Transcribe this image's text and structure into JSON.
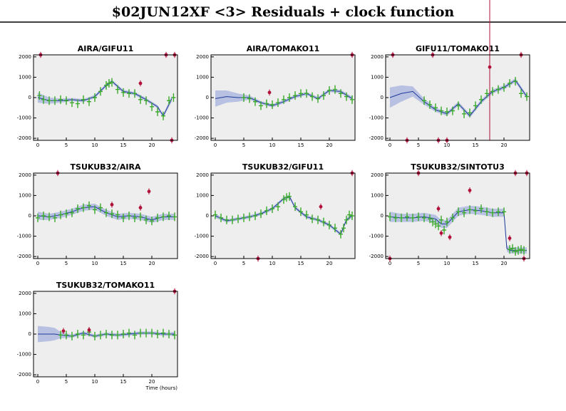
{
  "title": "$02JUN12XF <3> Residuals + clock function",
  "chart_data": [
    {
      "type": "scatter",
      "title": "AIRA/GIFU11",
      "xlim": [
        -0.75,
        24.5
      ],
      "ylim": [
        -2100,
        2100
      ],
      "xticks": [
        0,
        5,
        10,
        15,
        20
      ],
      "yticks": [
        -2000,
        -1000,
        0,
        1000,
        2000
      ],
      "series": [
        {
          "type": "line",
          "color": "#1f3a9a",
          "band_color": "#b9c1e2",
          "x": [
            0,
            2,
            4,
            6,
            8,
            10,
            12,
            13,
            15,
            17,
            19,
            21,
            22,
            23.5
          ],
          "values": [
            0,
            -150,
            -150,
            -100,
            -150,
            50,
            600,
            800,
            300,
            200,
            -100,
            -450,
            -900,
            -50
          ],
          "errors": [
            250,
            150,
            100,
            80,
            80,
            80,
            80,
            80,
            80,
            80,
            80,
            80,
            80,
            150
          ]
        },
        {
          "type": "scatter",
          "color": "#3aaa2a",
          "x": [
            0.3,
            1,
            2,
            3,
            4,
            5,
            6,
            7,
            8,
            9,
            10,
            11,
            12,
            12.5,
            13,
            14,
            15,
            16,
            17,
            18,
            19,
            20,
            21,
            22,
            23,
            23.8
          ],
          "values": [
            100,
            -100,
            -150,
            -150,
            -100,
            -150,
            -250,
            -300,
            -100,
            -200,
            0,
            300,
            600,
            700,
            750,
            400,
            250,
            200,
            200,
            -100,
            -150,
            -450,
            -700,
            -900,
            -150,
            0
          ]
        },
        {
          "type": "errorbar",
          "color": "#b0103a",
          "x": [
            0.5,
            18,
            22.5,
            24,
            23.5
          ],
          "values": [
            2100,
            700,
            2100,
            2100,
            -2100
          ],
          "errors": [
            150,
            150,
            150,
            150,
            150
          ]
        }
      ]
    },
    {
      "type": "scatter",
      "title": "AIRA/TOMAKO11",
      "xlim": [
        -0.75,
        24.5
      ],
      "ylim": [
        -2100,
        2100
      ],
      "xticks": [
        0,
        5,
        10,
        15,
        20
      ],
      "yticks": [
        -2000,
        -1000,
        0,
        1000,
        2000
      ],
      "series": [
        {
          "type": "line",
          "color": "#1f3a9a",
          "band_color": "#b9c1e2",
          "x": [
            0,
            2,
            4,
            6,
            8,
            10,
            12,
            14,
            16,
            18,
            20,
            22,
            24
          ],
          "values": [
            -50,
            50,
            0,
            0,
            -250,
            -400,
            -200,
            50,
            200,
            -50,
            350,
            300,
            -50
          ],
          "errors": [
            400,
            300,
            200,
            100,
            80,
            80,
            80,
            80,
            80,
            80,
            80,
            80,
            100
          ]
        },
        {
          "type": "scatter",
          "color": "#3aaa2a",
          "x": [
            5,
            6,
            7,
            8,
            9,
            10,
            11,
            12,
            13,
            14,
            15,
            16,
            17,
            18,
            19,
            20,
            21,
            22,
            23,
            24
          ],
          "values": [
            0,
            -50,
            -200,
            -400,
            -300,
            -350,
            -250,
            -100,
            0,
            100,
            200,
            200,
            50,
            -50,
            100,
            350,
            400,
            200,
            50,
            -100
          ]
        },
        {
          "type": "errorbar",
          "color": "#b0103a",
          "x": [
            9.5,
            24
          ],
          "values": [
            250,
            2100
          ],
          "errors": [
            150,
            150
          ]
        }
      ]
    },
    {
      "type": "scatter",
      "title": "GIFU11/TOMAKO11",
      "xlim": [
        -0.75,
        24.5
      ],
      "ylim": [
        -2100,
        2100
      ],
      "xticks": [
        0,
        5,
        10,
        15,
        20
      ],
      "yticks": [
        -2000,
        -1000,
        0,
        1000,
        2000
      ],
      "series": [
        {
          "type": "line",
          "color": "#1f3a9a",
          "band_color": "#b9c1e2",
          "x": [
            0,
            2,
            4,
            6,
            8,
            10,
            12,
            14,
            16,
            18,
            20,
            22,
            24
          ],
          "values": [
            0,
            200,
            300,
            -200,
            -600,
            -800,
            -300,
            -900,
            -200,
            300,
            500,
            850,
            50
          ],
          "errors": [
            500,
            400,
            250,
            150,
            100,
            100,
            100,
            100,
            100,
            100,
            100,
            100,
            100
          ]
        },
        {
          "type": "scatter",
          "color": "#3aaa2a",
          "x": [
            6,
            7,
            8,
            9,
            10,
            11,
            12,
            13,
            14,
            15,
            16,
            17,
            18,
            19,
            20,
            21,
            22,
            23,
            24
          ],
          "values": [
            -150,
            -350,
            -500,
            -650,
            -700,
            -650,
            -400,
            -800,
            -750,
            -400,
            -100,
            200,
            300,
            400,
            500,
            700,
            800,
            200,
            50
          ]
        },
        {
          "type": "errorbar",
          "color": "#b0103a",
          "x": [
            0.5,
            3,
            7.5,
            8.5,
            10,
            17.5,
            23
          ],
          "values": [
            2100,
            -2100,
            2100,
            -2100,
            -2100,
            1500,
            2100
          ],
          "errors": [
            150,
            150,
            150,
            150,
            150,
            3600,
            150
          ]
        }
      ]
    },
    {
      "type": "scatter",
      "title": "TSUKUB32/AIRA",
      "xlim": [
        -0.75,
        24.5
      ],
      "ylim": [
        -2100,
        2100
      ],
      "xticks": [
        0,
        5,
        10,
        15,
        20
      ],
      "yticks": [
        -2000,
        -1000,
        0,
        1000,
        2000
      ],
      "series": [
        {
          "type": "line",
          "color": "#1f3a9a",
          "band_color": "#b9c1e2",
          "x": [
            0,
            2,
            4,
            6,
            8,
            10,
            12,
            14,
            16,
            18,
            20,
            22,
            24
          ],
          "values": [
            0,
            -50,
            50,
            200,
            400,
            450,
            150,
            -50,
            0,
            -50,
            -200,
            -50,
            -50
          ],
          "errors": [
            200,
            150,
            150,
            150,
            150,
            150,
            150,
            150,
            150,
            150,
            150,
            150,
            150
          ]
        },
        {
          "type": "scatter",
          "color": "#3aaa2a",
          "x": [
            0,
            1,
            2,
            3,
            4,
            5,
            6,
            7,
            8,
            9,
            10,
            11,
            12,
            13,
            14,
            15,
            16,
            17,
            18,
            19,
            20,
            21,
            22,
            23,
            24
          ],
          "values": [
            -100,
            0,
            -50,
            -100,
            50,
            100,
            150,
            350,
            400,
            500,
            300,
            400,
            150,
            100,
            50,
            -100,
            0,
            -100,
            -50,
            -200,
            -250,
            -100,
            -50,
            0,
            -50
          ]
        },
        {
          "type": "errorbar",
          "color": "#b0103a",
          "x": [
            3.5,
            13,
            18,
            19.5
          ],
          "values": [
            2100,
            550,
            400,
            1200
          ],
          "errors": [
            150,
            150,
            150,
            150
          ]
        }
      ]
    },
    {
      "type": "scatter",
      "title": "TSUKUB32/GIFU11",
      "xlim": [
        -0.75,
        24.5
      ],
      "ylim": [
        -2100,
        2100
      ],
      "xticks": [
        0,
        5,
        10,
        15,
        20
      ],
      "yticks": [
        -2000,
        -1000,
        0,
        1000,
        2000
      ],
      "series": [
        {
          "type": "line",
          "color": "#1f3a9a",
          "band_color": "#b9c1e2",
          "x": [
            0,
            2,
            4,
            6,
            8,
            10,
            12,
            13,
            14,
            16,
            18,
            20,
            22,
            23,
            24
          ],
          "values": [
            0,
            -250,
            -150,
            -50,
            100,
            350,
            850,
            950,
            400,
            -50,
            -200,
            -450,
            -900,
            -200,
            0
          ],
          "errors": [
            100,
            80,
            80,
            80,
            80,
            80,
            80,
            80,
            80,
            80,
            80,
            80,
            80,
            80,
            100
          ]
        },
        {
          "type": "scatter",
          "color": "#3aaa2a",
          "x": [
            0,
            1,
            2,
            3,
            4,
            5,
            6,
            7,
            8,
            9,
            10,
            11,
            12,
            12.5,
            13,
            14,
            15,
            16,
            17,
            18,
            19,
            20,
            21,
            22,
            22.5,
            23,
            23.5,
            24
          ],
          "values": [
            50,
            -100,
            -200,
            -200,
            -150,
            -100,
            -50,
            0,
            100,
            250,
            350,
            450,
            800,
            900,
            950,
            450,
            200,
            50,
            -150,
            -200,
            -300,
            -450,
            -600,
            -900,
            -600,
            -200,
            50,
            0
          ]
        },
        {
          "type": "errorbar",
          "color": "#b0103a",
          "x": [
            7.5,
            18.5,
            24
          ],
          "values": [
            -2100,
            450,
            2100
          ],
          "errors": [
            150,
            150,
            150
          ]
        }
      ]
    },
    {
      "type": "scatter",
      "title": "TSUKUB32/SINTOTU3",
      "xlim": [
        -0.75,
        24.5
      ],
      "ylim": [
        -2100,
        2100
      ],
      "xticks": [
        0,
        5,
        10,
        15,
        20
      ],
      "yticks": [
        -2000,
        -1000,
        0,
        1000,
        2000
      ],
      "series": [
        {
          "type": "line",
          "color": "#1f3a9a",
          "band_color": "#b9c1e2",
          "x": [
            0,
            2,
            4,
            6,
            8,
            9,
            10,
            12,
            14,
            16,
            18,
            20,
            20.5,
            21,
            22,
            24
          ],
          "values": [
            -50,
            -100,
            -100,
            -50,
            -150,
            -400,
            -400,
            200,
            300,
            250,
            150,
            150,
            -1600,
            -1700,
            -1700,
            -1700
          ],
          "errors": [
            250,
            200,
            200,
            200,
            200,
            200,
            200,
            200,
            200,
            200,
            200,
            200,
            150,
            150,
            150,
            150
          ]
        },
        {
          "type": "scatter",
          "color": "#3aaa2a",
          "x": [
            0,
            1,
            2,
            3,
            4,
            5,
            6,
            7,
            7.5,
            8,
            8.5,
            9,
            9.5,
            10,
            11,
            12,
            13,
            14,
            15,
            16,
            17,
            18,
            19,
            20,
            21,
            21.5,
            22,
            22.5,
            23,
            23.5
          ],
          "values": [
            -50,
            -100,
            -100,
            -50,
            -100,
            -50,
            -100,
            -150,
            -300,
            -400,
            -500,
            -200,
            -700,
            -300,
            -100,
            200,
            150,
            300,
            250,
            350,
            200,
            150,
            200,
            200,
            -1650,
            -1600,
            -1750,
            -1700,
            -1650,
            -1700
          ]
        },
        {
          "type": "errorbar",
          "color": "#b0103a",
          "x": [
            0,
            5,
            8.5,
            9,
            10.5,
            14,
            21,
            22,
            23.5,
            24
          ],
          "values": [
            -2100,
            2100,
            350,
            -850,
            -1050,
            1250,
            -1100,
            2100,
            -2100,
            2100
          ],
          "errors": [
            150,
            150,
            150,
            150,
            150,
            150,
            150,
            150,
            150,
            150
          ]
        }
      ]
    },
    {
      "type": "scatter",
      "title": "TSUKUB32/TOMAKO11",
      "xlabel": "Time (hours)",
      "xlim": [
        -0.75,
        24.5
      ],
      "ylim": [
        -2100,
        2100
      ],
      "xticks": [
        0,
        5,
        10,
        15,
        20
      ],
      "yticks": [
        -2000,
        -1000,
        0,
        1000,
        2000
      ],
      "series": [
        {
          "type": "line",
          "color": "#1f3a9a",
          "band_color": "#b9c1e2",
          "x": [
            0,
            2,
            3,
            4,
            6,
            8,
            10,
            12,
            14,
            16,
            18,
            20,
            22,
            24
          ],
          "values": [
            0,
            0,
            0,
            -50,
            -100,
            50,
            -100,
            0,
            -50,
            0,
            50,
            50,
            0,
            0
          ],
          "errors": [
            400,
            350,
            300,
            150,
            80,
            80,
            80,
            80,
            80,
            80,
            80,
            80,
            80,
            100
          ]
        },
        {
          "type": "scatter",
          "color": "#3aaa2a",
          "x": [
            4,
            5,
            6,
            7,
            8,
            9,
            10,
            11,
            12,
            13,
            14,
            15,
            16,
            17,
            18,
            19,
            20,
            21,
            22,
            23,
            24
          ],
          "values": [
            -50,
            -50,
            -100,
            0,
            -50,
            100,
            -100,
            -50,
            0,
            -50,
            -50,
            0,
            50,
            -50,
            50,
            50,
            50,
            0,
            50,
            0,
            -50
          ]
        },
        {
          "type": "errorbar",
          "color": "#b0103a",
          "x": [
            4.5,
            9,
            24
          ],
          "values": [
            150,
            200,
            2100
          ],
          "errors": [
            150,
            150,
            150
          ]
        }
      ]
    }
  ]
}
